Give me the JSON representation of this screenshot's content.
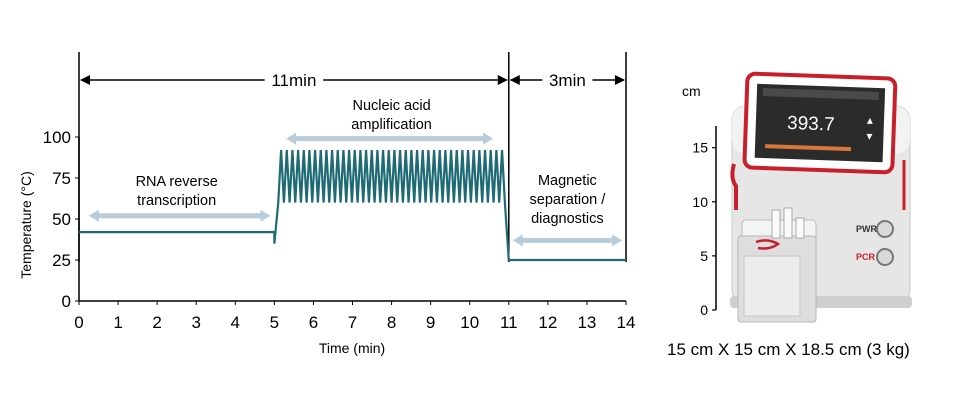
{
  "chart_data": {
    "type": "line",
    "xlabel": "Time (min)",
    "ylabel": "Temperature (°C)",
    "xlim": [
      0,
      14
    ],
    "ylim": [
      0,
      100
    ],
    "xticks": [
      0,
      1,
      2,
      3,
      4,
      5,
      6,
      7,
      8,
      9,
      10,
      11,
      12,
      13,
      14
    ],
    "yticks": [
      0,
      25,
      50,
      75,
      100
    ],
    "grid": false,
    "series_color": "#1f6b75",
    "arrow_color": "#b9ccdb",
    "stages": [
      {
        "label_lines": [
          "RNA reverse",
          "transcription"
        ],
        "start": 0,
        "end": 5,
        "temp": 42
      },
      {
        "label_lines": [
          "Nucleic acid",
          "amplification"
        ],
        "start": 5.1,
        "end": 10.9,
        "temp_high": 92,
        "temp_low": 60,
        "cycles": 40
      },
      {
        "label_lines": [
          "Magnetic",
          "separation /",
          "diagnostics"
        ],
        "start": 11,
        "end": 14,
        "temp": 25
      }
    ],
    "durations": [
      {
        "label": "11min",
        "start": 0,
        "end": 11
      },
      {
        "label": "3min",
        "start": 11,
        "end": 14
      }
    ]
  },
  "device": {
    "screen_value": "393.7",
    "buttons": [
      {
        "label": "PWR",
        "color": "#333333"
      },
      {
        "label": "PCR",
        "color": "#d0202a"
      }
    ],
    "scale_unit": "cm",
    "scale_ticks": [
      0,
      5,
      10,
      15
    ],
    "accent_color": "#c8202a",
    "caption": "15 cm X 15 cm X 18.5 cm (3 kg)"
  }
}
